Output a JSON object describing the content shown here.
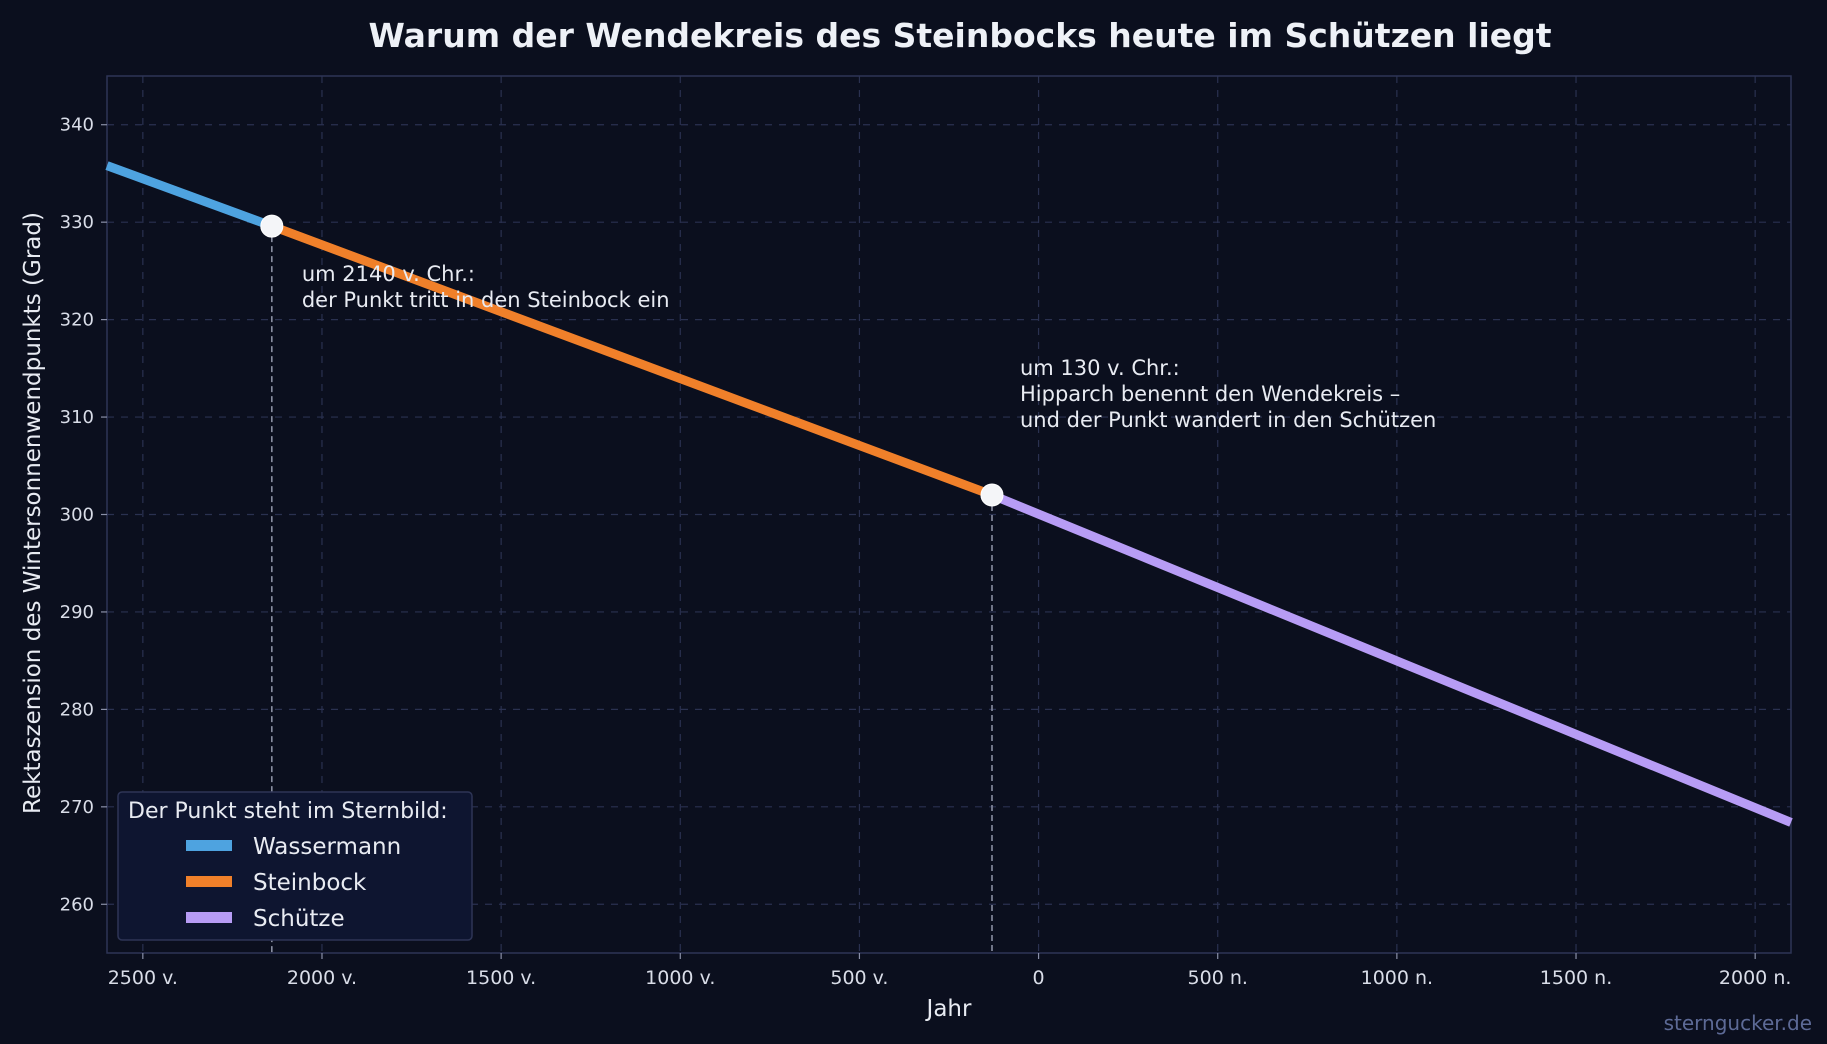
{
  "chart_data": {
    "type": "line",
    "title": "Warum der Wendekreis des Steinbocks heute im Schützen liegt",
    "xlabel": "Jahr",
    "ylabel": "Rektaszension des Wintersonnenwendpunkts (Grad)",
    "xlim": [
      -2600,
      2100
    ],
    "ylim": [
      255,
      345
    ],
    "x_ticks": [
      {
        "value": -2500,
        "label": "2500 v."
      },
      {
        "value": -2000,
        "label": "2000 v."
      },
      {
        "value": -1500,
        "label": "1500 v."
      },
      {
        "value": -1000,
        "label": "1000 v."
      },
      {
        "value": -500,
        "label": "500 v."
      },
      {
        "value": 0,
        "label": "0"
      },
      {
        "value": 500,
        "label": "500 n."
      },
      {
        "value": 1000,
        "label": "1000 n."
      },
      {
        "value": 1500,
        "label": "1500 n."
      },
      {
        "value": 2000,
        "label": "2000 n."
      }
    ],
    "y_ticks": [
      260,
      270,
      280,
      290,
      300,
      310,
      320,
      330,
      340
    ],
    "grid": true,
    "legend": {
      "title": "Der Punkt steht im Sternbild:",
      "placement": "bottom-left"
    },
    "series": [
      {
        "name": "Wassermann",
        "color": "#4ea3e0",
        "x": [
          -2600,
          -2140
        ],
        "y": [
          335.8,
          329.6
        ]
      },
      {
        "name": "Steinbock",
        "color": "#f0802a",
        "x": [
          -2140,
          -130
        ],
        "y": [
          329.6,
          302.0
        ]
      },
      {
        "name": "Schütze",
        "color": "#b79cf5",
        "x": [
          -130,
          2100
        ],
        "y": [
          302.0,
          268.4
        ]
      }
    ],
    "markers": [
      {
        "x": -2140,
        "y": 329.6
      },
      {
        "x": -130,
        "y": 302.0
      }
    ],
    "annotations": [
      {
        "x": -2140,
        "lines": [
          "um 2140 v. Chr.:",
          "der Punkt tritt in den Steinbock ein"
        ]
      },
      {
        "x": -130,
        "lines": [
          "um 130 v. Chr.:",
          "Hipparch benennt den Wendekreis –",
          "und der Punkt wandert in den Schützen"
        ]
      }
    ]
  },
  "watermark": "sterngucker.de",
  "colors": {
    "background": "#0b0f1e",
    "grid": "#2a3150",
    "frame": "#2e3556",
    "legend_bg": "#0e1530",
    "marker": "#f4f5f8",
    "guide": "#8a8fa3"
  }
}
